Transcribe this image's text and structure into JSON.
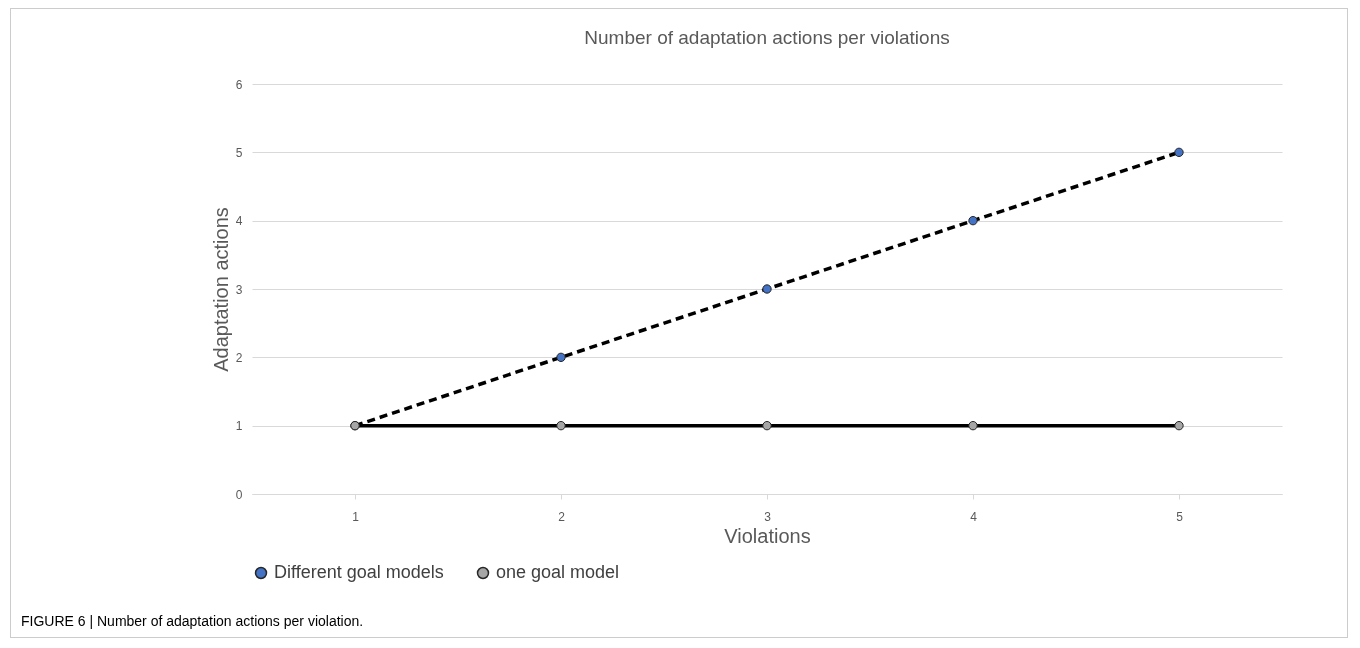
{
  "chart_data": {
    "type": "line",
    "title": "Number of adaptation actions per violations",
    "xlabel": "Violations",
    "ylabel": "Adaptation actions",
    "categories": [
      "1",
      "2",
      "3",
      "4",
      "5"
    ],
    "series": [
      {
        "name": "Different goal models",
        "color": "#4472c4",
        "line_style": "dashed",
        "values": [
          1,
          2,
          3,
          4,
          5
        ]
      },
      {
        "name": "one goal model",
        "color": "#a6a6a6",
        "line_style": "solid",
        "values": [
          1,
          1,
          1,
          1,
          1
        ]
      }
    ],
    "ylim": [
      0,
      6
    ],
    "yticks": [
      0,
      1,
      2,
      3,
      4,
      5,
      6
    ],
    "grid": "y",
    "legend": "bottom",
    "marker": "circle",
    "annotations": [
      "FIGURE 6 | Number of adaptation actions per violation."
    ]
  }
}
